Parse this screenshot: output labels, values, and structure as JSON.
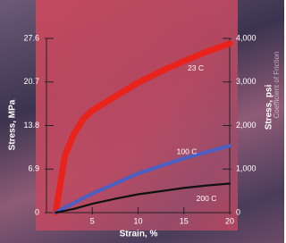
{
  "chart_data": {
    "type": "line",
    "x_label": "Strain, %",
    "y_label": "Stress, MPa",
    "y2_label": "Stress, psi",
    "annotation": "Coefficient of Friction",
    "x": [
      1,
      2,
      3,
      4,
      5,
      7.5,
      10,
      12.5,
      15,
      17.5,
      20
    ],
    "series": [
      {
        "name": "23 C",
        "color": "#e8231c",
        "values": [
          0,
          9,
          12.5,
          14.8,
          16.2,
          18.4,
          20.6,
          22.4,
          24,
          25.5,
          26.8
        ]
      },
      {
        "name": "100 C",
        "color": "#4c5fc2",
        "values": [
          0,
          0.8,
          1.5,
          2.3,
          3,
          4.6,
          6.2,
          7.4,
          8.6,
          9.6,
          10.6
        ]
      },
      {
        "name": "200 C",
        "color": "#111111",
        "values": [
          0,
          0.3,
          0.6,
          1,
          1.4,
          2.2,
          2.9,
          3.4,
          3.9,
          4.3,
          4.6
        ]
      }
    ],
    "xlim": [
      0,
      20
    ],
    "xticks": [
      5,
      10,
      15,
      20
    ],
    "ylim": [
      0,
      27.6
    ],
    "yticks": [
      0,
      6.9,
      13.8,
      20.7,
      27.6
    ],
    "y2lim": [
      0,
      4000
    ],
    "y2ticks": [
      0,
      {
        "value": 1000,
        "label": "1,000"
      },
      {
        "value": 2000,
        "label": "2,000"
      },
      {
        "value": 3000,
        "label": "3,000"
      },
      {
        "value": 4000,
        "label": "4,000"
      }
    ]
  }
}
